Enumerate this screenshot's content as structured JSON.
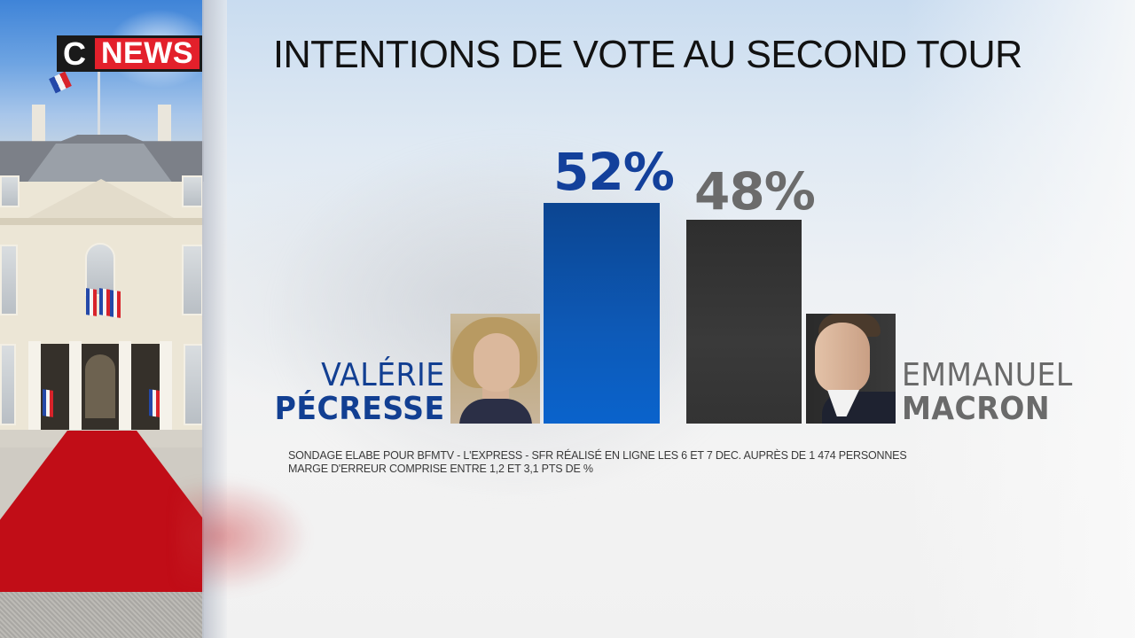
{
  "channel": {
    "logo_c": "C",
    "logo_news": "NEWS",
    "brand_colors": {
      "c_box": "#1a1a1a",
      "news_box": "#e3202b"
    }
  },
  "background_photo": {
    "subject": "palais-elysee-facade-with-red-carpet",
    "icons": [
      "french-flag-icon"
    ]
  },
  "title": "INTENTIONS DE VOTE AU SECOND TOUR",
  "candidates": [
    {
      "first_name": "VALÉRIE",
      "last_name": "PÉCRESSE",
      "value_label": "52%",
      "color": "#0d53ad",
      "text_color": "#123f92",
      "portrait": "valerie-pecresse-portrait"
    },
    {
      "first_name": "EMMANUEL",
      "last_name": "MACRON",
      "value_label": "48%",
      "color": "#333333",
      "text_color": "#6a6a6a",
      "portrait": "emmanuel-macron-portrait"
    }
  ],
  "source": {
    "line1": "SONDAGE ELABE POUR BFMTV - L'EXPRESS - SFR  RÉALISÉ EN LIGNE LES 6 ET 7 DEC. AUPRÈS DE 1 474 PERSONNES",
    "line2": "MARGE D'ERREUR COMPRISE ENTRE 1,2 ET 3,1 PTS DE %"
  },
  "chart_data": {
    "type": "bar",
    "title": "INTENTIONS DE VOTE AU SECOND TOUR",
    "categories": [
      "Valérie Pécresse",
      "Emmanuel Macron"
    ],
    "values": [
      52,
      48
    ],
    "value_labels": [
      "52%",
      "48%"
    ],
    "colors": [
      "#0d53ad",
      "#333333"
    ],
    "xlabel": "",
    "ylabel": "",
    "unit": "%",
    "ylim": [
      0,
      100
    ],
    "grid": false,
    "legend": "none",
    "annotations": [
      "SONDAGE ELABE POUR BFMTV - L'EXPRESS - SFR  RÉALISÉ EN LIGNE LES 6 ET 7 DEC. AUPRÈS DE 1 474 PERSONNES",
      "MARGE D'ERREUR COMPRISE ENTRE 1,2 ET 3,1 PTS DE %"
    ]
  }
}
